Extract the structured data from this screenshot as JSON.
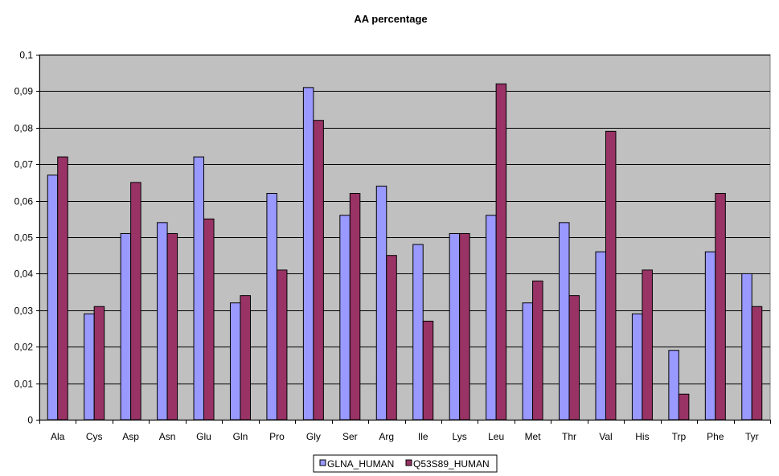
{
  "chart_data": {
    "type": "bar",
    "title": "AA percentage",
    "xlabel": "",
    "ylabel": "",
    "categories": [
      "Ala",
      "Cys",
      "Asp",
      "Asn",
      "Glu",
      "Gln",
      "Pro",
      "Gly",
      "Ser",
      "Arg",
      "Ile",
      "Lys",
      "Leu",
      "Met",
      "Thr",
      "Val",
      "His",
      "Trp",
      "Phe",
      "Tyr"
    ],
    "series": [
      {
        "name": "GLNA_HUMAN",
        "color": "#9999ff",
        "values": [
          0.067,
          0.029,
          0.051,
          0.054,
          0.072,
          0.032,
          0.062,
          0.091,
          0.056,
          0.064,
          0.048,
          0.051,
          0.056,
          0.032,
          0.054,
          0.046,
          0.029,
          0.019,
          0.046,
          0.04
        ]
      },
      {
        "name": "Q53S89_HUMAN",
        "color": "#993366",
        "values": [
          0.072,
          0.031,
          0.065,
          0.051,
          0.055,
          0.034,
          0.041,
          0.082,
          0.062,
          0.045,
          0.027,
          0.051,
          0.092,
          0.038,
          0.034,
          0.079,
          0.041,
          0.007,
          0.062,
          0.031
        ]
      }
    ],
    "ylim": [
      0,
      0.1
    ],
    "yticks": [
      0,
      0.01,
      0.02,
      0.03,
      0.04,
      0.05,
      0.06,
      0.07,
      0.08,
      0.09,
      0.1
    ],
    "ytick_labels": [
      "0",
      "0,01",
      "0,02",
      "0,03",
      "0,04",
      "0,05",
      "0,06",
      "0,07",
      "0,08",
      "0,09",
      "0,1"
    ],
    "grid": true,
    "legend_position": "bottom-center",
    "plot_background": "#c0c0c0",
    "gridline_color": "#000000"
  }
}
